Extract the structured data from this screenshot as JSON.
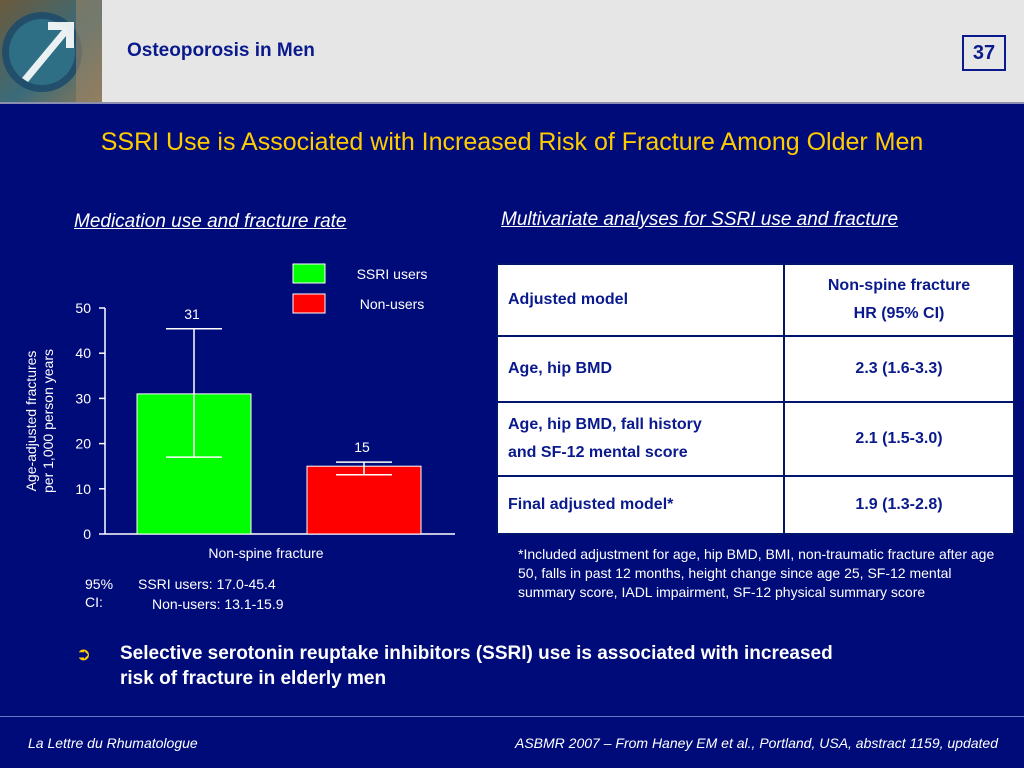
{
  "header": {
    "title": "Osteoporosis in Men",
    "page_number": "37"
  },
  "slide_title": "SSRI Use is Associated with Increased Risk of Fracture Among Older Men",
  "left_panel": {
    "subtitle": "Medication use and fracture rate",
    "ci_note": {
      "label": "95% CI:",
      "line1": "SSRI users: 17.0-45.4",
      "line2": "Non-users: 13.1-15.9"
    }
  },
  "chart_data": {
    "type": "bar",
    "categories": [
      "Non-spine fracture"
    ],
    "series": [
      {
        "name": "SSRI users",
        "values": [
          31
        ],
        "ci": [
          17.0,
          45.4
        ],
        "label": "31",
        "color": "#00ff00"
      },
      {
        "name": "Non-users",
        "values": [
          15
        ],
        "ci": [
          13.1,
          15.9
        ],
        "label": "15",
        "color": "#ff0000"
      }
    ],
    "xlabel": "Non-spine fracture",
    "ylabel": [
      "Age-adjusted fractures",
      "per 1,000 person years"
    ],
    "ylim": [
      0,
      50
    ],
    "yticks": [
      "0",
      "10",
      "20",
      "30",
      "40",
      "50"
    ],
    "grid": false,
    "legend_position": "top-right"
  },
  "right_panel": {
    "subtitle": "Multivariate analyses for SSRI use and fracture",
    "table": {
      "header": {
        "col1": "Adjusted model",
        "col2_line1": "Non-spine fracture",
        "col2_line2": "HR (95% CI)"
      },
      "rows": [
        {
          "model": "Age, hip BMD",
          "hr": "2.3 (1.6-3.3)"
        },
        {
          "model_line1": "Age, hip BMD, fall history",
          "model_line2": "and SF-12 mental score",
          "hr": "2.1 (1.5-3.0)"
        },
        {
          "model": "Final adjusted model*",
          "hr": "1.9 (1.3-2.8)"
        }
      ]
    },
    "footnote": "*Included adjustment for age, hip BMD, BMI, non-traumatic fracture after age 50, falls in past 12 months, height change since age 25, SF-12 mental summary score, IADL impairment, SF-12 physical summary score"
  },
  "bullet": {
    "icon": "curved-arrow-icon",
    "text": "Selective serotonin reuptake inhibitors (SSRI) use is associated with increased risk of fracture in elderly men"
  },
  "footer": {
    "left": "La Lettre du Rhumatologue",
    "right": "ASBMR 2007 – From Haney EM et al., Portland, USA, abstract 1159, updated"
  },
  "colors": {
    "background": "#000b7a",
    "title": "#ffcc00",
    "header_text": "#0a1a8c"
  }
}
